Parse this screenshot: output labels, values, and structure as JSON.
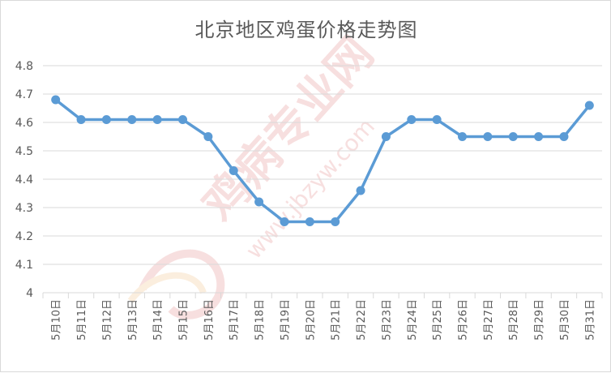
{
  "chart_data": {
    "type": "line",
    "title": "北京地区鸡蛋价格走势图",
    "xlabel": "",
    "ylabel": "",
    "categories": [
      "5月10日",
      "5月11日",
      "5月12日",
      "5月13日",
      "5月14日",
      "5月15日",
      "5月16日",
      "5月17日",
      "5月18日",
      "5月19日",
      "5月20日",
      "5月21日",
      "5月22日",
      "5月23日",
      "5月24日",
      "5月25日",
      "5月26日",
      "5月27日",
      "5月28日",
      "5月29日",
      "5月30日",
      "5月31日"
    ],
    "series": [
      {
        "values": [
          4.68,
          4.61,
          4.61,
          4.61,
          4.61,
          4.61,
          4.55,
          4.43,
          4.32,
          4.25,
          4.25,
          4.25,
          4.36,
          4.55,
          4.61,
          4.61,
          4.55,
          4.55,
          4.55,
          4.55,
          4.55,
          4.66
        ]
      }
    ],
    "ylim": [
      4.0,
      4.8
    ],
    "yticks": [
      "4",
      "4.1",
      "4.2",
      "4.3",
      "4.4",
      "4.5",
      "4.6",
      "4.7",
      "4.8"
    ],
    "grid": true,
    "legend": "none",
    "colors": {
      "series": "#5b9bd5",
      "grid": "#d9d9d9",
      "text": "#595959",
      "watermark": "#e8a3a3"
    },
    "watermark": {
      "text": "鸡病专业网",
      "url": "www.jbzyw.com"
    }
  }
}
